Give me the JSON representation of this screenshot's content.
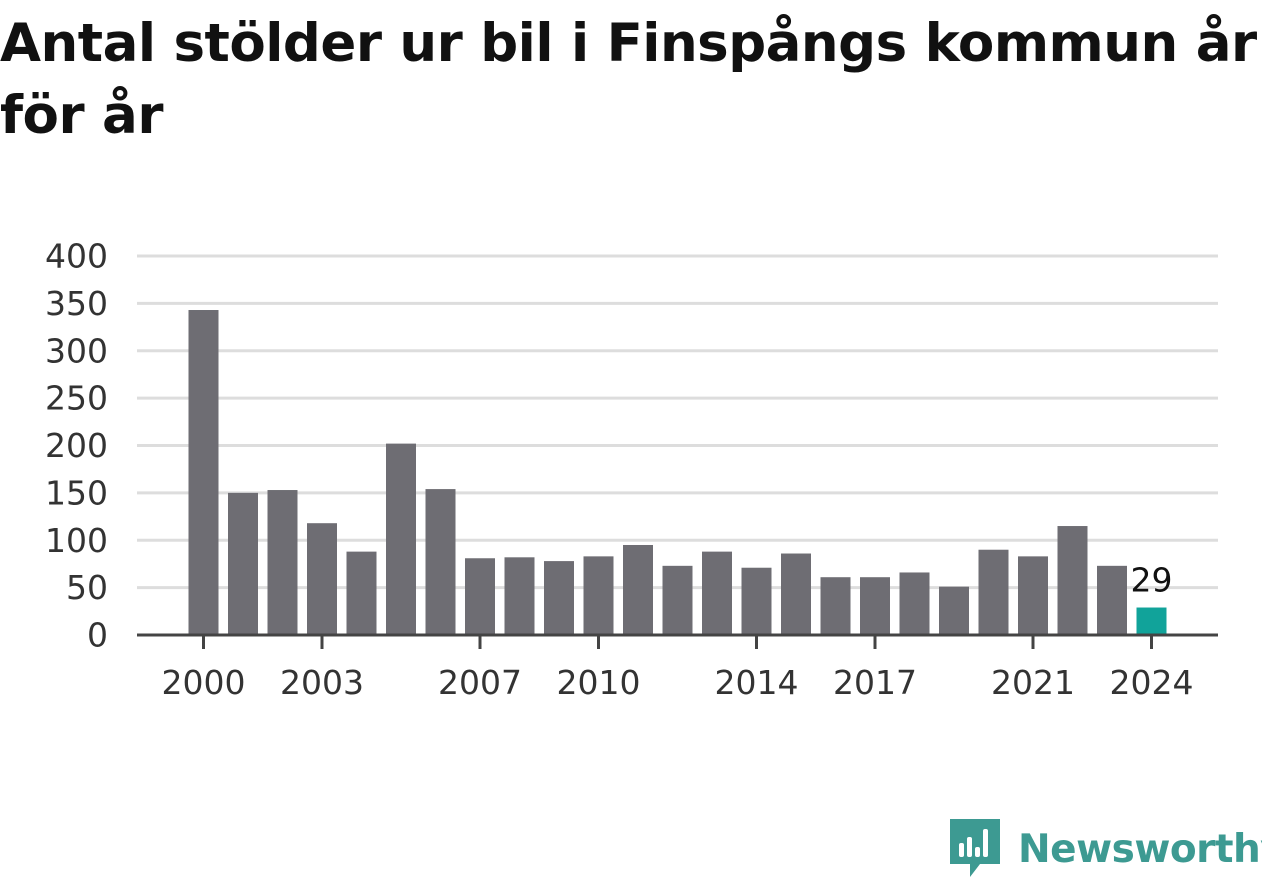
{
  "title": "Antal stölder ur bil i Finspångs kommun år för år",
  "colors": {
    "bar": "#6e6d73",
    "highlight": "#11a39a",
    "grid": "#dddddd",
    "axis": "#444444",
    "brand": "#3d9a92"
  },
  "brand": {
    "name": "Newsworthy",
    "icon": "newsworthy-logo-icon"
  },
  "chart_data": {
    "type": "bar",
    "categories": [
      "2000",
      "2001",
      "2002",
      "2003",
      "2004",
      "2005",
      "2006",
      "2007",
      "2008",
      "2009",
      "2010",
      "2011",
      "2012",
      "2013",
      "2014",
      "2015",
      "2016",
      "2017",
      "2018",
      "2019",
      "2020",
      "2021",
      "2022",
      "2023",
      "2024"
    ],
    "values": [
      343,
      150,
      153,
      118,
      88,
      202,
      154,
      81,
      82,
      78,
      83,
      95,
      73,
      88,
      71,
      86,
      61,
      61,
      66,
      51,
      90,
      83,
      115,
      73,
      29
    ],
    "highlight_category": "2024",
    "data_labels": [
      {
        "category": "2024",
        "text": "29"
      }
    ],
    "x_tick_labels": [
      "2000",
      "2003",
      "2007",
      "2010",
      "2014",
      "2017",
      "2021",
      "2024"
    ],
    "y_ticks": [
      0,
      50,
      100,
      150,
      200,
      250,
      300,
      350,
      400
    ],
    "ylim": [
      0,
      400
    ],
    "grid": true,
    "title": "Antal stölder ur bil i Finspångs kommun år för år",
    "xlabel": "",
    "ylabel": ""
  }
}
